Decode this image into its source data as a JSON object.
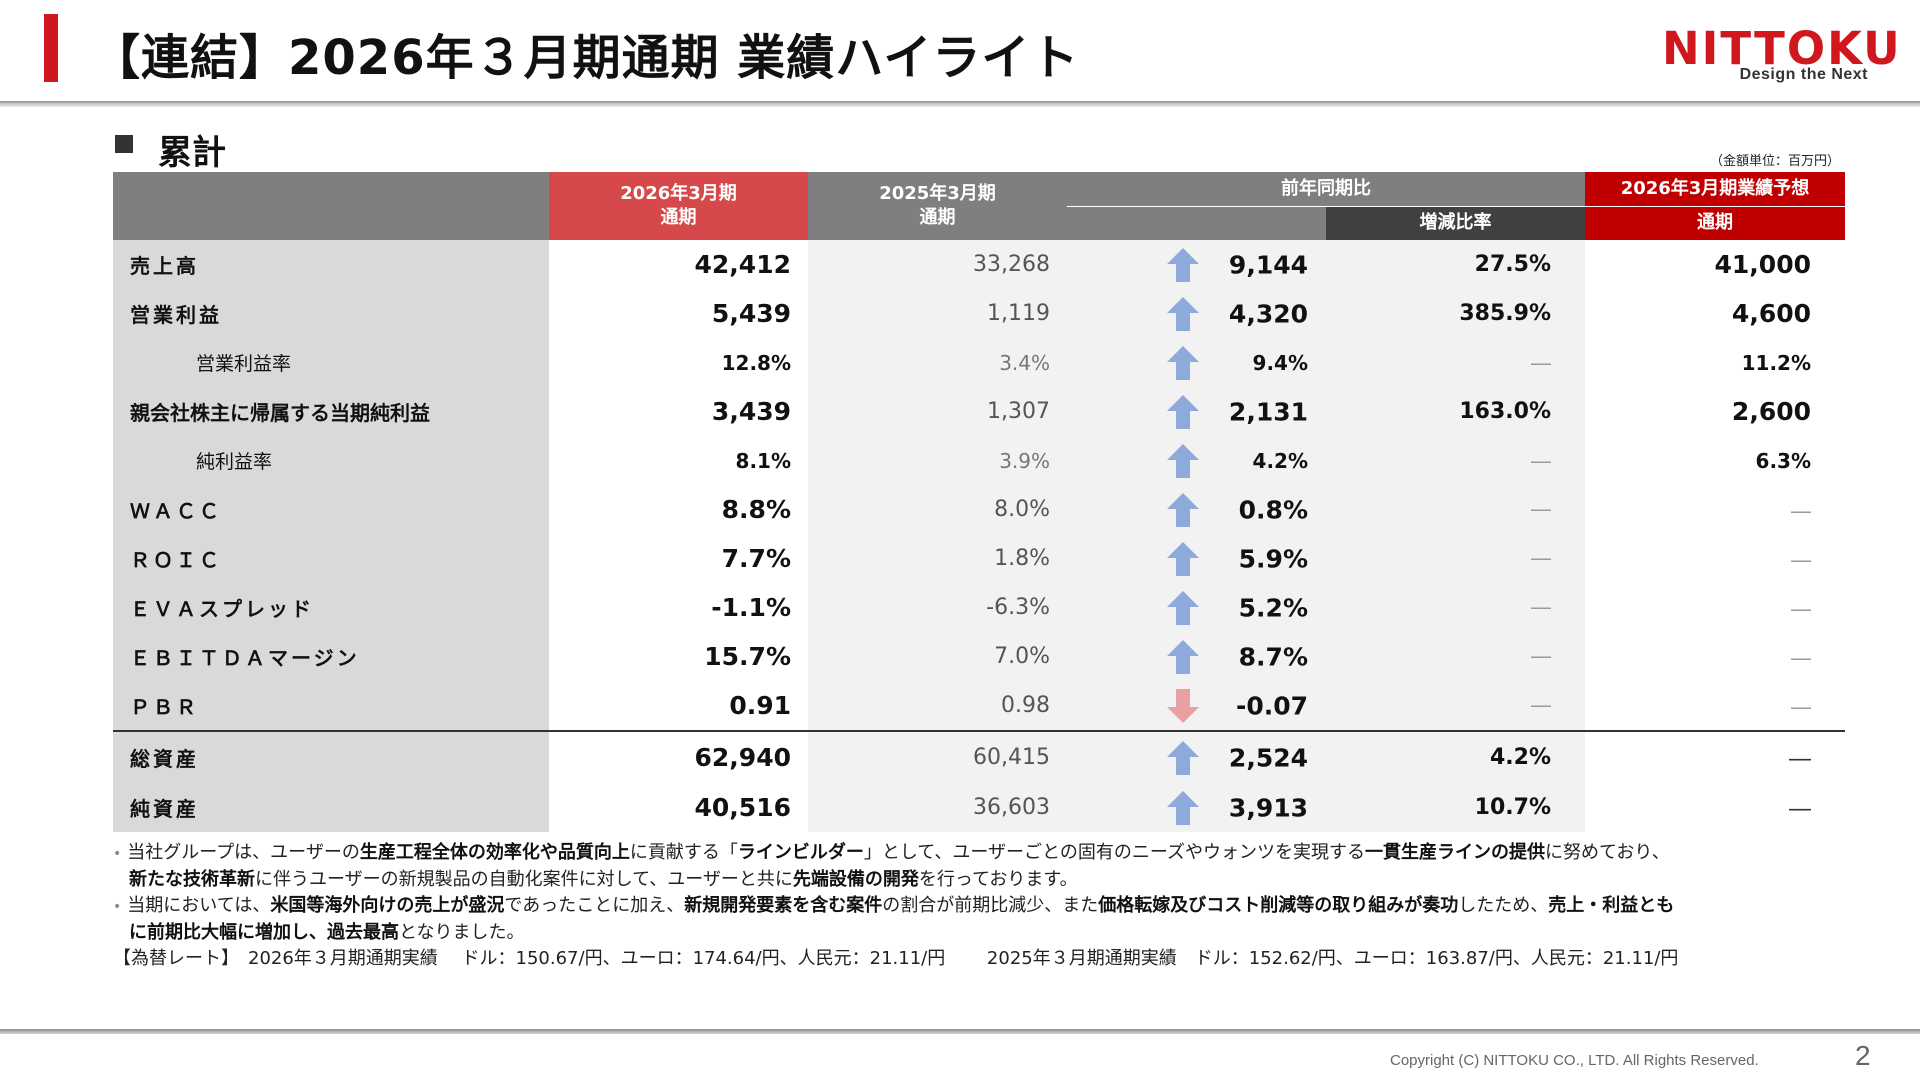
{
  "header": {
    "title": "【連結】2026年３月期通期 業績ハイライト",
    "logo_text": "NITTOKU",
    "logo_tagline": "Design the Next",
    "accent_color": "#d0171e"
  },
  "section": {
    "title": "累計",
    "unit_note": "（金額単位：百万円）"
  },
  "table": {
    "headers": {
      "current_line1": "2026年3月期",
      "current_line2": "通期",
      "previous_line1": "2025年3月期",
      "previous_line2": "通期",
      "yoy": "前年同期比",
      "rate": "増減比率",
      "forecast_line1": "2026年3月期業績予想",
      "forecast_line2": "通期"
    },
    "rows": [
      {
        "label": "売上高",
        "current": "42,412",
        "previous": "33,268",
        "yoy": "9,144",
        "direction": "up",
        "rate": "27.5%",
        "forecast": "41,000"
      },
      {
        "label": "営業利益",
        "current": "5,439",
        "previous": "1,119",
        "yoy": "4,320",
        "direction": "up",
        "rate": "385.9%",
        "forecast": "4,600"
      },
      {
        "label": "営業利益率",
        "current": "12.8%",
        "previous": "3.4%",
        "yoy": "9.4%",
        "direction": "up",
        "rate": "―",
        "forecast": "11.2%"
      },
      {
        "label": "親会社株主に帰属する当期純利益",
        "current": "3,439",
        "previous": "1,307",
        "yoy": "2,131",
        "direction": "up",
        "rate": "163.0%",
        "forecast": "2,600"
      },
      {
        "label": "純利益率",
        "current": "8.1%",
        "previous": "3.9%",
        "yoy": "4.2%",
        "direction": "up",
        "rate": "―",
        "forecast": "6.3%"
      },
      {
        "label": "ＷＡＣＣ",
        "current": "8.8%",
        "previous": "8.0%",
        "yoy": "0.8%",
        "direction": "up",
        "rate": "―",
        "forecast": "―"
      },
      {
        "label": "ＲＯＩＣ",
        "current": "7.7%",
        "previous": "1.8%",
        "yoy": "5.9%",
        "direction": "up",
        "rate": "―",
        "forecast": "―"
      },
      {
        "label": "ＥＶＡスプレッド",
        "current": "-1.1%",
        "previous": "-6.3%",
        "yoy": "5.2%",
        "direction": "up",
        "rate": "―",
        "forecast": "―"
      },
      {
        "label": "ＥＢＩＴＤＡマージン",
        "current": "15.7%",
        "previous": "7.0%",
        "yoy": "8.7%",
        "direction": "up",
        "rate": "―",
        "forecast": "―"
      },
      {
        "label": "ＰＢＲ",
        "current": "0.91",
        "previous": "0.98",
        "yoy": "-0.07",
        "direction": "down",
        "rate": "―",
        "forecast": "―"
      },
      {
        "label": "総資産",
        "current": "62,940",
        "previous": "60,415",
        "yoy": "2,524",
        "direction": "up",
        "rate": "4.2%",
        "forecast": "―"
      },
      {
        "label": "純資産",
        "current": "40,516",
        "previous": "36,603",
        "yoy": "3,913",
        "direction": "up",
        "rate": "10.7%",
        "forecast": "―"
      }
    ],
    "arrow_up_color": "#8eaadb",
    "arrow_down_color": "#e8a0a0"
  },
  "notes": {
    "n1_a": "当社グループは、ユーザーの",
    "n1_b": "生産工程全体の効率化や品質向上",
    "n1_c": "に貢献する「",
    "n1_d": "ラインビルダー",
    "n1_e": "」として、ユーザーごとの固有のニーズやウォンツを実現する",
    "n1_f": "一貫生産ラインの提供",
    "n1_g": "に努めており、",
    "n2_a": "新たな技術革新",
    "n2_b": "に伴うユーザーの新規製品の自動化案件に対して、ユーザーと共に",
    "n2_c": "先端設備の開発",
    "n2_d": "を行っております。",
    "n3_a": "当期においては、",
    "n3_b": "米国等海外向けの売上が盛況",
    "n3_c": "であったことに加え、",
    "n3_d": "新規開発要素を含む案件",
    "n3_e": "の割合が前期比減少、また",
    "n3_f": "価格転嫁及びコスト削減等の取り組みが奏功",
    "n3_g": "したため、",
    "n3_h": "売上・利益とも",
    "n4_a": "に前期比大幅に増加し、過去最高",
    "n4_b": "となりました。",
    "fx": "【為替レート】　2026年３月期通期実績　 ドル：150.67/円、ユーロ：174.64/円、人民元：21.11/円　　 2025年３月期通期実績　ドル：152.62/円、ユーロ：163.87/円、人民元：21.11/円"
  },
  "footer": {
    "copyright": "Copyright  (C) NITTOKU CO., LTD.  All Rights Reserved.",
    "page": "2"
  }
}
